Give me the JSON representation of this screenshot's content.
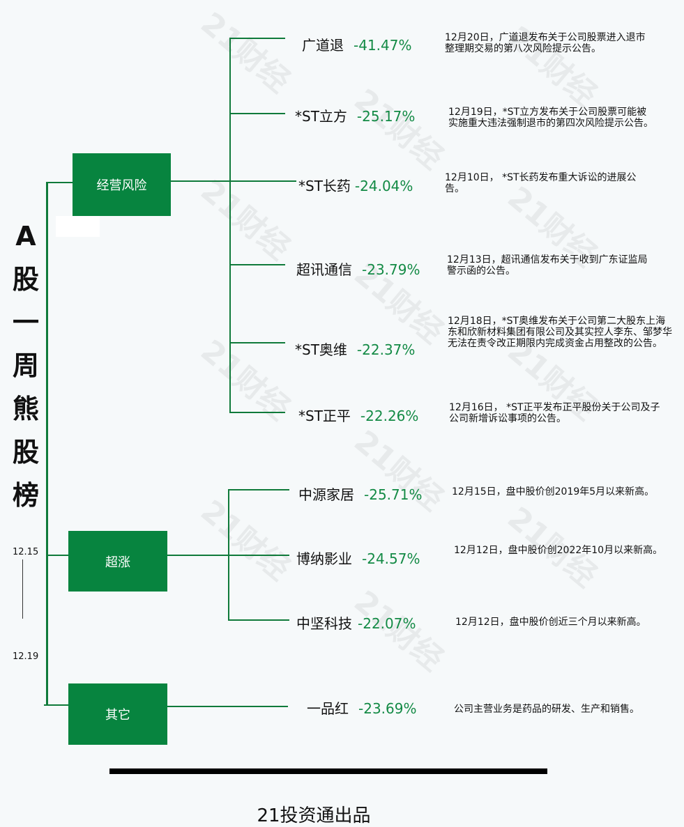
{
  "title": "A股一周熊股榜",
  "dates": {
    "start": "12.15",
    "end": "12.19"
  },
  "watermark": "21财经",
  "groups": [
    {
      "label": "经营风险",
      "items": [
        {
          "name": "广道退",
          "pct": "-41.47%",
          "desc": "12月20日，广道退发布关于公司股票进入退市整理期交易的第八次风险提示公告。"
        },
        {
          "name": "*ST立方",
          "pct": "-25.17%",
          "desc": "12月19日，*ST立方发布关于公司股票可能被实施重大违法强制退市的第四次风险提示公告。"
        },
        {
          "name": "*ST长药",
          "pct": "-24.04%",
          "desc": "12月10日， *ST长药发布重大诉讼的进展公告。"
        },
        {
          "name": "超讯通信",
          "pct": "-23.79%",
          "desc": "12月13日，超讯通信发布关于收到广东证监局警示函的公告。"
        },
        {
          "name": "*ST奥维",
          "pct": "-22.37%",
          "desc": "12月18日，*ST奥维发布关于公司第二大股东上海东和欣新材料集团有限公司及其实控人李东、邹梦华无法在责令改正期限内完成资金占用整改的公告。"
        },
        {
          "name": "*ST正平",
          "pct": "-22.26%",
          "desc": "12月16日， *ST正平发布正平股份关于公司及子公司新增诉讼事项的公告。"
        }
      ]
    },
    {
      "label": "超涨",
      "items": [
        {
          "name": "中源家居",
          "pct": "-25.71%",
          "desc": "12月15日，盘中股价创2019年5月以来新高。"
        },
        {
          "name": "博纳影业",
          "pct": "-24.57%",
          "desc": "12月12日，盘中股价创2022年10月以来新高。"
        },
        {
          "name": "中坚科技",
          "pct": "-22.07%",
          "desc": "12月12日，盘中股价创近三个月以来新高。"
        }
      ]
    },
    {
      "label": "其它",
      "items": [
        {
          "name": "一品红",
          "pct": "-23.69%",
          "desc": "公司主营业务是药品的研发、生产和销售。"
        }
      ]
    }
  ],
  "footer": "21投资通出品",
  "colors": {
    "box": "#07843f",
    "line": "#0f7a3a",
    "pct": "#138a45"
  }
}
